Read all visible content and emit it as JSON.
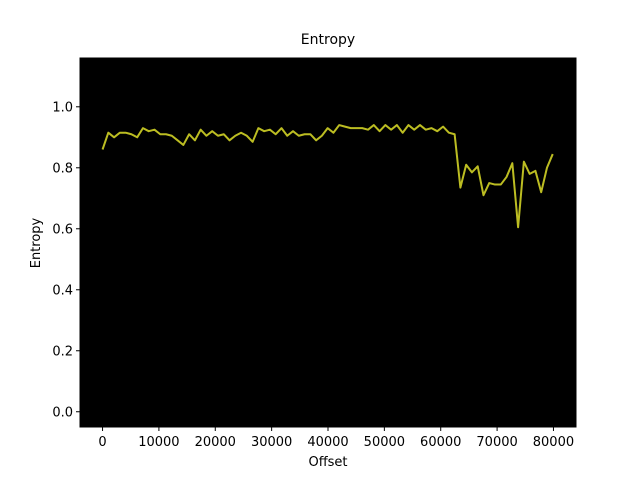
{
  "chart_data": {
    "type": "line",
    "title": "Entropy",
    "x_label": "Offset",
    "y_label": "Entropy",
    "background": "#000000",
    "x": [
      0,
      1024,
      2048,
      3072,
      4096,
      5120,
      6144,
      7168,
      8192,
      9216,
      10240,
      11264,
      12288,
      13312,
      14336,
      15360,
      16384,
      17408,
      18432,
      19456,
      20480,
      21504,
      22528,
      23552,
      24576,
      25600,
      26624,
      27648,
      28672,
      29696,
      30720,
      31744,
      32768,
      33792,
      34816,
      35840,
      36864,
      37888,
      38912,
      39936,
      40960,
      41984,
      43008,
      44032,
      45056,
      46080,
      47104,
      48128,
      49152,
      50176,
      51200,
      52224,
      53248,
      54272,
      55296,
      56320,
      57344,
      58368,
      59392,
      60416,
      61440,
      62464,
      63488,
      64512,
      65536,
      66560,
      67584,
      68608,
      69632,
      70656,
      71680,
      72704,
      73728,
      74752,
      75776,
      76800,
      77824,
      78848,
      79872
    ],
    "series": [
      {
        "name": "Entropy",
        "color": "#bcbd22",
        "values": [
          0.86,
          0.915,
          0.9,
          0.915,
          0.915,
          0.91,
          0.9,
          0.93,
          0.92,
          0.925,
          0.91,
          0.91,
          0.905,
          0.89,
          0.875,
          0.91,
          0.89,
          0.925,
          0.905,
          0.92,
          0.905,
          0.91,
          0.89,
          0.905,
          0.915,
          0.905,
          0.885,
          0.93,
          0.92,
          0.925,
          0.91,
          0.93,
          0.905,
          0.92,
          0.905,
          0.91,
          0.91,
          0.89,
          0.905,
          0.93,
          0.915,
          0.94,
          0.935,
          0.93,
          0.93,
          0.93,
          0.925,
          0.94,
          0.92,
          0.94,
          0.925,
          0.94,
          0.915,
          0.94,
          0.925,
          0.94,
          0.925,
          0.93,
          0.92,
          0.935,
          0.915,
          0.91,
          0.735,
          0.81,
          0.785,
          0.805,
          0.71,
          0.75,
          0.745,
          0.745,
          0.77,
          0.815,
          0.605,
          0.82,
          0.78,
          0.79,
          0.72,
          0.8,
          0.845
        ]
      }
    ],
    "xlim": [
      -4000,
      84000
    ],
    "ylim": [
      -0.05,
      1.16
    ],
    "xticks": [
      0,
      10000,
      20000,
      30000,
      40000,
      50000,
      60000,
      70000,
      80000
    ],
    "yticks": [
      {
        "value": 0,
        "label": "0.0"
      },
      0.2,
      0.4,
      0.6,
      0.8,
      {
        "value": 1,
        "label": "1.0"
      }
    ]
  }
}
